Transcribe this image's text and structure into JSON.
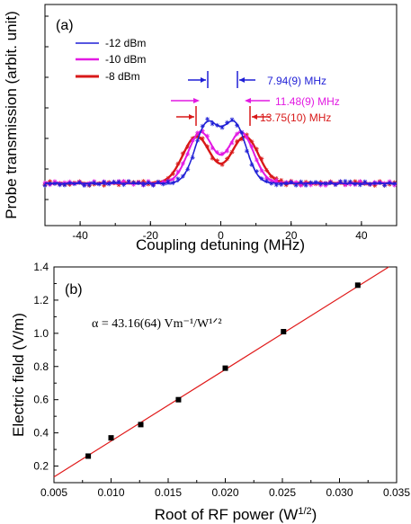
{
  "chart_data": [
    {
      "type": "line",
      "panel_label": "(a)",
      "xlabel": "Coupling detuning (MHz)",
      "ylabel": "Probe transmission (arbit. unit)",
      "xlim": [
        -50,
        50
      ],
      "x_ticks": [
        -40,
        -20,
        0,
        20,
        40
      ],
      "x_tick_labels": [
        "-40",
        "-20",
        "0",
        "20",
        "40"
      ],
      "y_ticks_unlabeled": true,
      "legend_position": "top-left",
      "series": [
        {
          "name": "-12 dBm",
          "color": "#1f1fd6",
          "peak_splitting_mhz": 7.94,
          "label": "7.94(9) MHz"
        },
        {
          "name": "-10 dBm",
          "color": "#e21ae2",
          "peak_splitting_mhz": 11.48,
          "label": "11.48(9) MHz"
        },
        {
          "name": "-8 dBm",
          "color": "#d81818",
          "peak_splitting_mhz": 13.75,
          "label": "13.75(10) MHz"
        }
      ]
    },
    {
      "type": "scatter",
      "panel_label": "(b)",
      "annotation": "α = 43.16(64) Vm⁻¹/W¹ᐟ²",
      "xlabel": "Root of RF power (W1/2)",
      "ylabel": "Electric field (V/m)",
      "xlim": [
        0.005,
        0.035
      ],
      "ylim": [
        0.1,
        1.4
      ],
      "x_ticks": [
        0.005,
        0.01,
        0.015,
        0.02,
        0.025,
        0.03,
        0.035
      ],
      "x_tick_labels": [
        "0.005",
        "0.010",
        "0.015",
        "0.020",
        "0.025",
        "0.030",
        "0.035"
      ],
      "y_ticks": [
        0.2,
        0.4,
        0.6,
        0.8,
        1.0,
        1.2,
        1.4
      ],
      "y_tick_labels": [
        "0.2",
        "0.4",
        "0.6",
        "0.8",
        "1.0",
        "1.2",
        "1.4"
      ],
      "points": [
        {
          "x": 0.008,
          "y": 0.26
        },
        {
          "x": 0.01,
          "y": 0.37
        },
        {
          "x": 0.0126,
          "y": 0.45
        },
        {
          "x": 0.0159,
          "y": 0.6
        },
        {
          "x": 0.02,
          "y": 0.79
        },
        {
          "x": 0.0251,
          "y": 1.01
        },
        {
          "x": 0.0316,
          "y": 1.29
        }
      ],
      "fit": {
        "slope": 43.16,
        "intercept": -0.081,
        "color": "#e01a1a"
      },
      "point_color": "#000000"
    }
  ]
}
